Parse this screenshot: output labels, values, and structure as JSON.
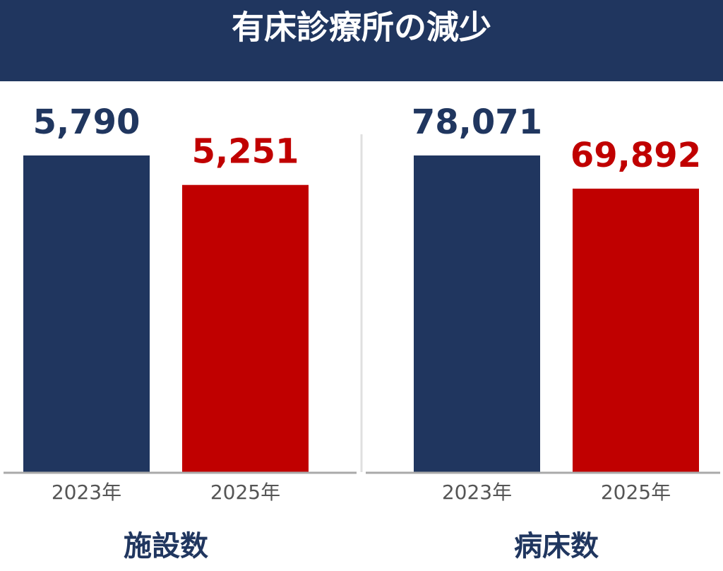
{
  "title": "有床診療所の減少",
  "chart_data": [
    {
      "type": "bar",
      "title": "施設数",
      "categories": [
        "2023年",
        "2025年"
      ],
      "values": [
        5790,
        5251
      ],
      "value_labels": [
        "5,790",
        "5,251"
      ],
      "colors": [
        "#20365f",
        "#c00000"
      ]
    },
    {
      "type": "bar",
      "title": "病床数",
      "categories": [
        "2023年",
        "2025年"
      ],
      "values": [
        78071,
        69892
      ],
      "value_labels": [
        "78,071",
        "69,892"
      ],
      "colors": [
        "#20365f",
        "#c00000"
      ]
    }
  ]
}
